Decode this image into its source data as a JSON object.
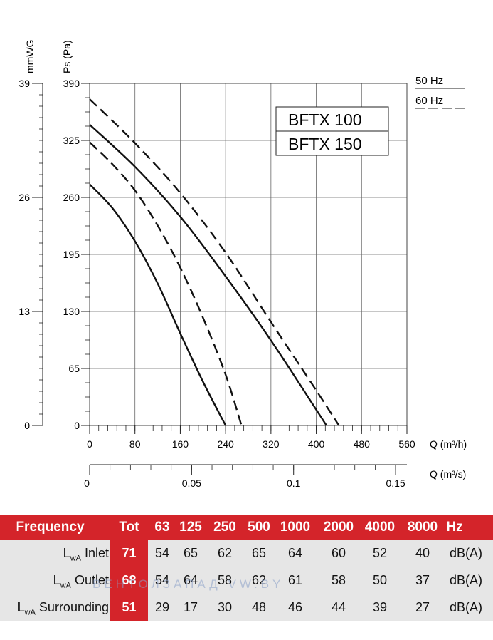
{
  "chart_data": {
    "type": "line",
    "title": "",
    "ylabel_left": "mmWG",
    "ylabel_right": "Ps (Pa)",
    "xlabel_top": "Q (m³/h)",
    "xlabel_bottom": "Q (m³/s)",
    "xlim": [
      0,
      560
    ],
    "ylim": [
      0,
      390
    ],
    "x_ticks": [
      "0",
      "80",
      "160",
      "240",
      "320",
      "400",
      "480",
      "560"
    ],
    "x_ticks_m3s": [
      "0",
      "0.05",
      "0.1",
      "0.15"
    ],
    "y_ticks_pa": [
      "0",
      "65",
      "130",
      "195",
      "260",
      "325",
      "390"
    ],
    "y_ticks_mmwg": [
      "0",
      "13",
      "26",
      "39"
    ],
    "legend_hz": [
      {
        "label": "50 Hz",
        "style": "solid"
      },
      {
        "label": "60 Hz",
        "style": "dashed"
      }
    ],
    "models": [
      "BFTX 100",
      "BFTX 150"
    ],
    "series": [
      {
        "name": "BFTX 100 50 Hz",
        "style": "solid",
        "x": [
          0,
          40,
          80,
          120,
          160,
          200,
          240
        ],
        "y": [
          275,
          248,
          210,
          162,
          105,
          50,
          0
        ]
      },
      {
        "name": "BFTX 100 60 Hz",
        "style": "dashed",
        "x": [
          0,
          40,
          80,
          120,
          160,
          200,
          240,
          268
        ],
        "y": [
          323,
          298,
          268,
          228,
          180,
          123,
          58,
          0
        ]
      },
      {
        "name": "BFTX 150 50 Hz",
        "style": "solid",
        "x": [
          0,
          80,
          160,
          240,
          320,
          400,
          418
        ],
        "y": [
          343,
          295,
          238,
          170,
          97,
          18,
          0
        ]
      },
      {
        "name": "BFTX 150 60 Hz",
        "style": "dashed",
        "x": [
          0,
          80,
          160,
          240,
          320,
          400,
          440
        ],
        "y": [
          372,
          322,
          265,
          197,
          118,
          40,
          0
        ]
      }
    ]
  },
  "table": {
    "header": {
      "frequency": "Frequency",
      "tot": "Tot",
      "bands": [
        "63",
        "125",
        "250",
        "500",
        "1000",
        "2000",
        "4000",
        "8000"
      ],
      "unit": "Hz"
    },
    "rows": [
      {
        "label": "L",
        "sub": "wA",
        "label_rest": " Inlet",
        "tot": "71",
        "values": [
          "54",
          "65",
          "62",
          "65",
          "64",
          "60",
          "52",
          "40"
        ],
        "unit": "dB(A)"
      },
      {
        "label": "L",
        "sub": "wA",
        "label_rest": " Outlet",
        "tot": "68",
        "values": [
          "54",
          "64",
          "58",
          "62",
          "61",
          "58",
          "50",
          "37"
        ],
        "unit": "dB(A)"
      },
      {
        "label": "L",
        "sub": "wA",
        "label_rest": " Surrounding",
        "tot": "51",
        "values": [
          "29",
          "17",
          "30",
          "48",
          "46",
          "44",
          "39",
          "27"
        ],
        "unit": "dB(A)"
      }
    ]
  },
  "watermark": "ВЕНТОЛЗАПАД   VW.BY"
}
